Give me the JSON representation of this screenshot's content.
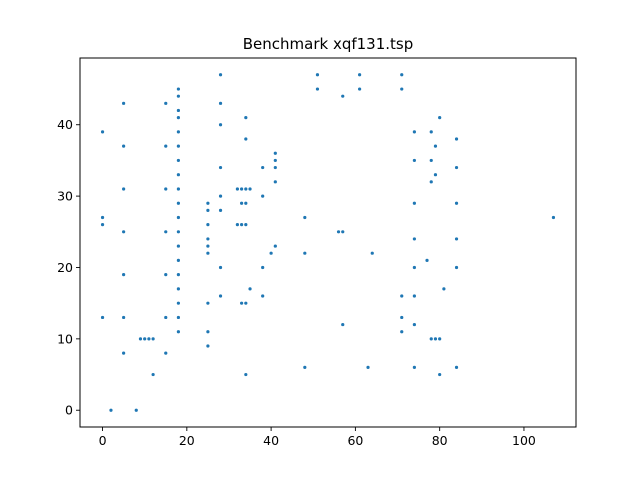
{
  "chart_data": {
    "type": "scatter",
    "title": "Benchmark xqf131.tsp",
    "xlabel": "",
    "ylabel": "",
    "xlim": [
      -5.35,
      112.35
    ],
    "ylim": [
      -2.35,
      49.35
    ],
    "xticks": [
      0,
      20,
      40,
      60,
      80,
      100
    ],
    "yticks": [
      0,
      10,
      20,
      30,
      40
    ],
    "grid": false,
    "point_color": "#1f77b4",
    "points": [
      [
        0,
        13
      ],
      [
        0,
        26
      ],
      [
        0,
        27
      ],
      [
        0,
        39
      ],
      [
        2,
        0
      ],
      [
        5,
        13
      ],
      [
        5,
        19
      ],
      [
        5,
        25
      ],
      [
        5,
        31
      ],
      [
        5,
        37
      ],
      [
        5,
        43
      ],
      [
        5,
        8
      ],
      [
        8,
        0
      ],
      [
        9,
        10
      ],
      [
        10,
        10
      ],
      [
        11,
        10
      ],
      [
        12,
        10
      ],
      [
        12,
        5
      ],
      [
        15,
        13
      ],
      [
        15,
        19
      ],
      [
        15,
        25
      ],
      [
        15,
        31
      ],
      [
        15,
        37
      ],
      [
        15,
        43
      ],
      [
        15,
        8
      ],
      [
        18,
        11
      ],
      [
        18,
        13
      ],
      [
        18,
        15
      ],
      [
        18,
        17
      ],
      [
        18,
        19
      ],
      [
        18,
        21
      ],
      [
        18,
        23
      ],
      [
        18,
        25
      ],
      [
        18,
        27
      ],
      [
        18,
        29
      ],
      [
        18,
        31
      ],
      [
        18,
        33
      ],
      [
        18,
        35
      ],
      [
        18,
        37
      ],
      [
        18,
        39
      ],
      [
        18,
        41
      ],
      [
        18,
        42
      ],
      [
        18,
        44
      ],
      [
        18,
        45
      ],
      [
        25,
        11
      ],
      [
        25,
        15
      ],
      [
        25,
        22
      ],
      [
        25,
        23
      ],
      [
        25,
        24
      ],
      [
        25,
        26
      ],
      [
        25,
        28
      ],
      [
        25,
        29
      ],
      [
        25,
        9
      ],
      [
        28,
        16
      ],
      [
        28,
        20
      ],
      [
        28,
        28
      ],
      [
        28,
        30
      ],
      [
        28,
        34
      ],
      [
        28,
        40
      ],
      [
        28,
        43
      ],
      [
        28,
        47
      ],
      [
        32,
        26
      ],
      [
        32,
        31
      ],
      [
        33,
        15
      ],
      [
        33,
        26
      ],
      [
        33,
        29
      ],
      [
        33,
        31
      ],
      [
        34,
        15
      ],
      [
        34,
        26
      ],
      [
        34,
        29
      ],
      [
        34,
        31
      ],
      [
        34,
        38
      ],
      [
        34,
        41
      ],
      [
        34,
        5
      ],
      [
        35,
        17
      ],
      [
        35,
        31
      ],
      [
        38,
        16
      ],
      [
        38,
        20
      ],
      [
        38,
        30
      ],
      [
        38,
        34
      ],
      [
        40,
        22
      ],
      [
        41,
        23
      ],
      [
        41,
        32
      ],
      [
        41,
        34
      ],
      [
        41,
        35
      ],
      [
        41,
        36
      ],
      [
        48,
        22
      ],
      [
        48,
        27
      ],
      [
        48,
        6
      ],
      [
        51,
        45
      ],
      [
        51,
        47
      ],
      [
        56,
        25
      ],
      [
        57,
        12
      ],
      [
        57,
        25
      ],
      [
        57,
        44
      ],
      [
        61,
        45
      ],
      [
        61,
        47
      ],
      [
        63,
        6
      ],
      [
        64,
        22
      ],
      [
        71,
        11
      ],
      [
        71,
        13
      ],
      [
        71,
        16
      ],
      [
        71,
        45
      ],
      [
        71,
        47
      ],
      [
        74,
        12
      ],
      [
        74,
        16
      ],
      [
        74,
        20
      ],
      [
        74,
        24
      ],
      [
        74,
        29
      ],
      [
        74,
        35
      ],
      [
        74,
        39
      ],
      [
        74,
        6
      ],
      [
        77,
        21
      ],
      [
        78,
        10
      ],
      [
        78,
        32
      ],
      [
        78,
        35
      ],
      [
        78,
        39
      ],
      [
        79,
        10
      ],
      [
        79,
        33
      ],
      [
        79,
        37
      ],
      [
        80,
        10
      ],
      [
        80,
        41
      ],
      [
        80,
        5
      ],
      [
        81,
        17
      ],
      [
        84,
        20
      ],
      [
        84,
        24
      ],
      [
        84,
        29
      ],
      [
        84,
        34
      ],
      [
        84,
        38
      ],
      [
        84,
        6
      ],
      [
        107,
        27
      ]
    ]
  }
}
